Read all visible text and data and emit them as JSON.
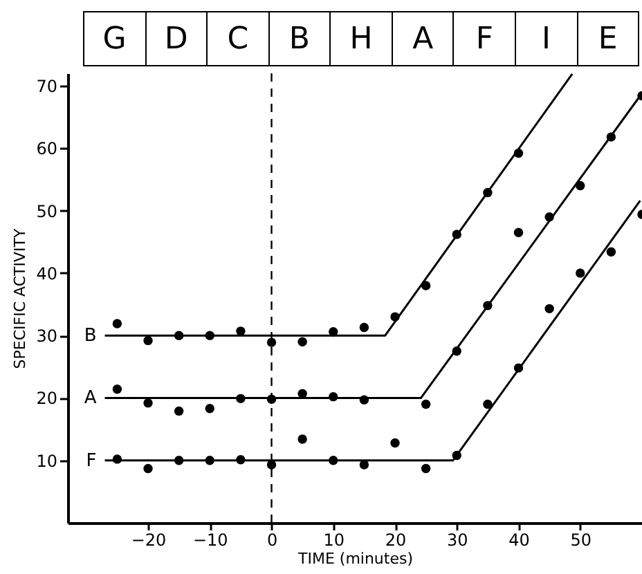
{
  "chart_data": {
    "type": "scatter",
    "xlabel": "TIME (minutes)",
    "ylabel": "SPECIFIC ACTIVITY",
    "annotations": [
      "G",
      "D",
      "C",
      "B",
      "H",
      "A",
      "F",
      "I",
      "E"
    ],
    "xlim": [
      -33,
      60
    ],
    "xticks": [
      -20,
      -10,
      0,
      10,
      20,
      30,
      40,
      50
    ],
    "ylim": [
      0,
      72
    ],
    "yticks": [
      10,
      20,
      30,
      40,
      50,
      60,
      70
    ],
    "marker": "circle",
    "ref_lines": [
      {
        "axis": "x",
        "value": 0,
        "line_style": "dashed",
        "color": "#000000"
      }
    ],
    "series": [
      {
        "type": "scatter",
        "color": "#000000",
        "x": [
          -25,
          -20,
          -15,
          -10,
          -5,
          0,
          5,
          10,
          15,
          20,
          25,
          30,
          35,
          40
        ],
        "values": [
          31.9,
          29.2,
          30,
          30,
          30.7,
          28.9,
          29,
          30.6,
          31.3,
          33,
          38,
          46.2,
          52.9,
          59.2
        ]
      },
      {
        "type": "scatter",
        "color": "#000000",
        "x": [
          -25,
          -20,
          -15,
          -10,
          -5,
          0,
          5,
          10,
          15,
          25,
          30,
          35,
          40,
          45,
          50,
          55,
          60
        ],
        "values": [
          21.4,
          19.2,
          17.9,
          18.3,
          19.9,
          19.8,
          20.7,
          20.2,
          19.7,
          19,
          27.5,
          34.8,
          46.5,
          49,
          54,
          61.8,
          68.4
        ]
      },
      {
        "type": "scatter",
        "color": "#000000",
        "x": [
          -25,
          -20,
          -15,
          -10,
          -5,
          0,
          5,
          10,
          15,
          20,
          25,
          30,
          35,
          40,
          45,
          50,
          55,
          60
        ],
        "values": [
          10.2,
          8.7,
          10,
          10,
          10.1,
          9.3,
          13.4,
          10,
          9.3,
          12.8,
          8.7,
          10.8,
          19,
          24.8,
          34.3,
          40,
          43.4,
          49.4
        ]
      },
      {
        "type": "line",
        "name": "B",
        "marker": "none",
        "color": "#000000",
        "x": [
          -27,
          18.4,
          48.7
        ],
        "values": [
          30,
          30,
          71.9
        ]
      },
      {
        "type": "line",
        "name": "A",
        "marker": "none",
        "color": "#000000",
        "x": [
          -27,
          24.2,
          59.7
        ],
        "values": [
          20,
          20,
          68.4
        ]
      },
      {
        "type": "line",
        "name": "F",
        "marker": "none",
        "color": "#000000",
        "x": [
          -27,
          29.4,
          59.7
        ],
        "values": [
          10,
          10,
          51.6
        ]
      }
    ]
  }
}
